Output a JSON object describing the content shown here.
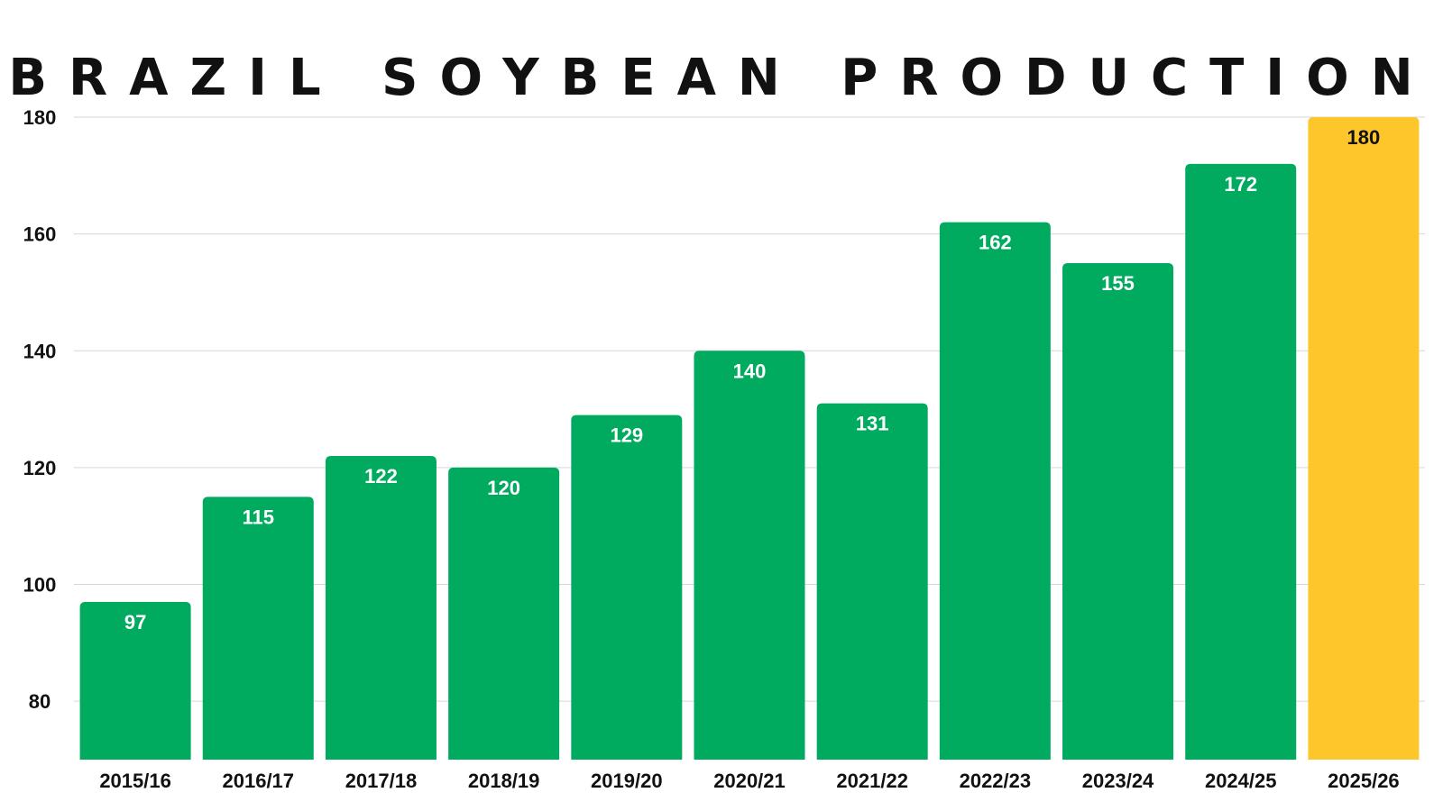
{
  "chart_data": {
    "type": "bar",
    "title": "BRAZIL SOYBEAN PRODUCTION",
    "xlabel": "",
    "ylabel": "",
    "categories": [
      "2015/16",
      "2016/17",
      "2017/18",
      "2018/19",
      "2019/20",
      "2020/21",
      "2021/22",
      "2022/23",
      "2023/24",
      "2024/25",
      "2025/26"
    ],
    "values": [
      97,
      115,
      122,
      120,
      129,
      140,
      131,
      162,
      155,
      172,
      180
    ],
    "value_labels": [
      "97",
      "115",
      "122",
      "120",
      "129",
      "140",
      "131",
      "162",
      "155",
      "172",
      "180"
    ],
    "yticks": [
      80,
      100,
      120,
      140,
      160,
      180
    ],
    "ytick_labels": [
      "80",
      "100",
      "120",
      "140",
      "160",
      "180"
    ],
    "ylim": [
      70,
      180
    ],
    "grid": true,
    "legend": "none",
    "colors": {
      "bar": "#00AB5F",
      "highlight_bar": "#FDC62A",
      "bar_label": "#FFFFFF",
      "highlight_label": "#111111",
      "grid": "#D6D6D6"
    },
    "highlight_index": 10
  }
}
